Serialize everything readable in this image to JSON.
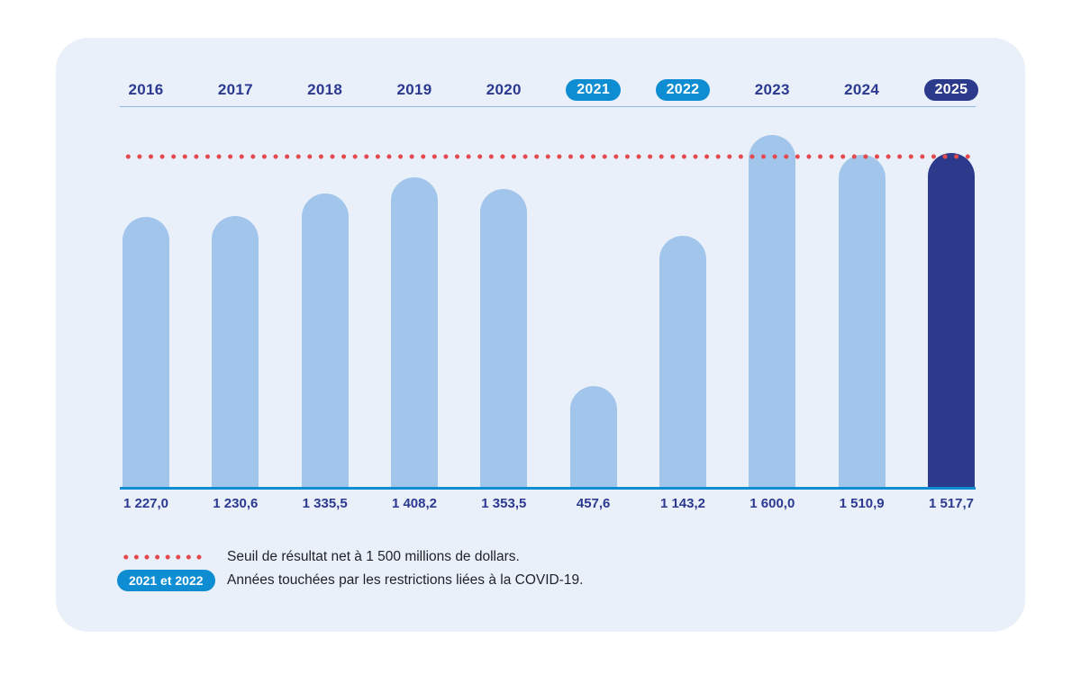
{
  "colors": {
    "card_background": "#E9F0F9",
    "bar_light_blue": "#A2C6EB",
    "bar_dark_navy": "#2C3A8C",
    "year_text_navy": "#2B3990",
    "covid_pill_blue": "#0F8DD2",
    "current_year_pill_navy": "#2C3A8C",
    "threshold_red": "#E4494E",
    "baseline_blue": "#0F8DD2"
  },
  "chart_data": {
    "type": "bar",
    "categories": [
      "2016",
      "2017",
      "2018",
      "2019",
      "2020",
      "2021",
      "2022",
      "2023",
      "2024",
      "2025"
    ],
    "values": [
      1227.0,
      1230.6,
      1335.5,
      1408.2,
      1353.5,
      457.6,
      1143.2,
      1600.0,
      1510.9,
      1517.7
    ],
    "value_labels": [
      "1 227,0",
      "1 230,6",
      "1 335,5",
      "1 408,2",
      "1 353,5",
      "457,6",
      "1 143,2",
      "1 600,0",
      "1 510,9",
      "1 517,7"
    ],
    "highlighted_years_covid": [
      "2021",
      "2022"
    ],
    "highlighted_year_current": "2025",
    "threshold": {
      "value": 1500
    },
    "ylim": [
      0,
      1600
    ],
    "grid": false,
    "legend_position": "bottom-left",
    "legend": [
      {
        "swatch": "red-dotted-line",
        "label": "Seuil de résultat net à 1 500 millions de dollars."
      },
      {
        "swatch": "blue-pill",
        "pill_label": "2021 et 2022",
        "label": "Années touchées par les restrictions liées à la COVID-19."
      }
    ]
  }
}
